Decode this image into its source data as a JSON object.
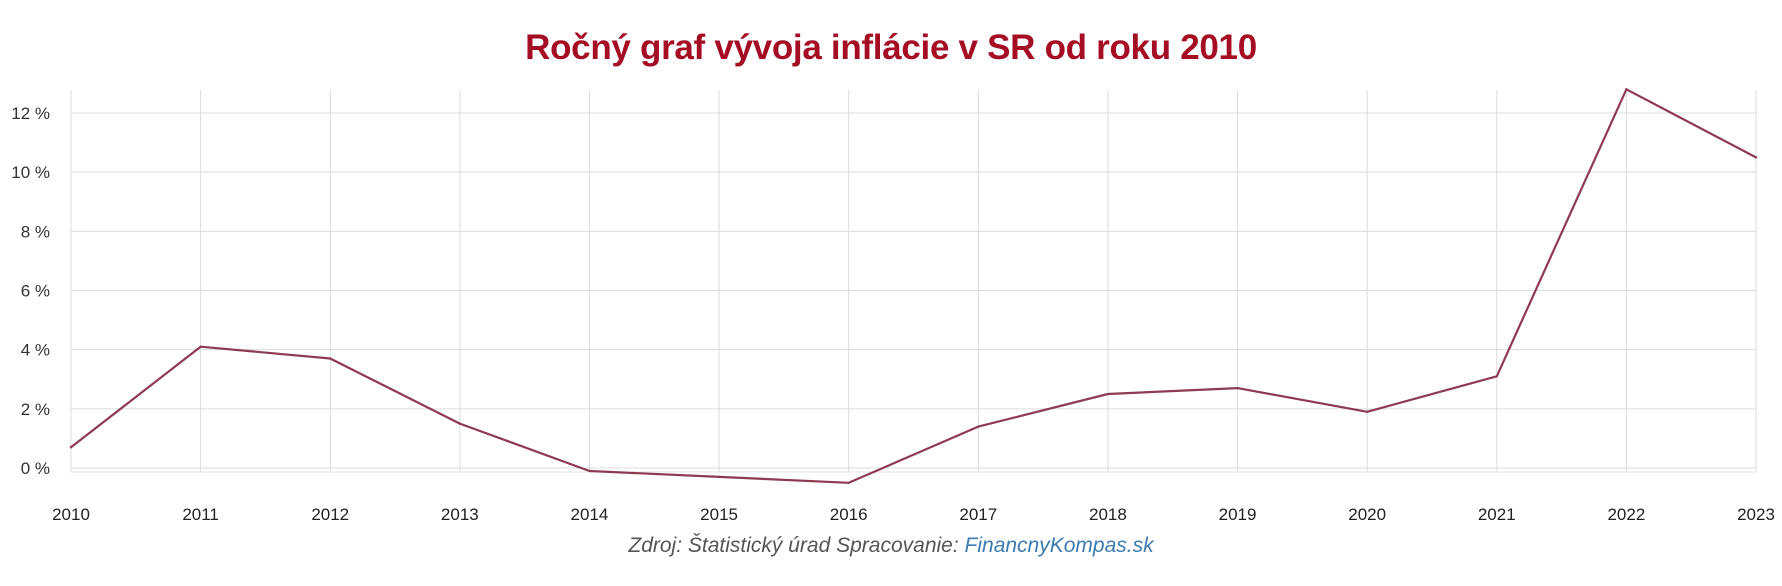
{
  "chart_data": {
    "type": "line",
    "title": "Ročný graf vývoja inflácie v SR od roku 2010",
    "x": [
      "2010",
      "2011",
      "2012",
      "2013",
      "2014",
      "2015",
      "2016",
      "2017",
      "2018",
      "2019",
      "2020",
      "2021",
      "2022",
      "2023"
    ],
    "series": [
      {
        "values": [
          0.7,
          4.1,
          3.7,
          1.5,
          -0.1,
          -0.3,
          -0.5,
          1.4,
          2.5,
          2.7,
          1.9,
          3.1,
          12.8,
          10.5
        ]
      }
    ],
    "yticks": [
      0,
      2,
      4,
      6,
      8,
      10,
      12
    ],
    "ytick_labels": [
      "0 %",
      "2 %",
      "4 %",
      "6 %",
      "8 %",
      "10 %",
      "12 %"
    ],
    "ylim": [
      -1,
      12.8
    ],
    "grid": true,
    "line_color": "#8e3a52",
    "title_color": "#a50d25"
  },
  "source": {
    "prefix": "Zdroj: Štatistický úrad  Spracovanie: ",
    "link": "FinancnyKompas.sk"
  }
}
